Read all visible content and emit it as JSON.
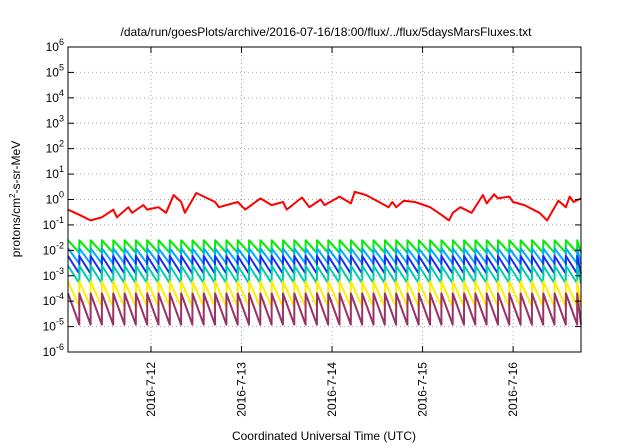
{
  "chart_data": {
    "type": "line",
    "title": "/data/run/goesPlots/archive/2016-07-16/18:00/flux/../flux/5daysMarsFluxes.txt",
    "xlabel": "Coordinated Universal Time (UTC)",
    "ylabel_parts": {
      "base": "protons/cm",
      "sup": "2",
      "rest": "-s-sr-MeV"
    },
    "y_scale": "log",
    "ylim": [
      1e-06,
      1000000.0
    ],
    "y_ticks": [
      {
        "base": "10",
        "exp": "-6",
        "value": 1e-06
      },
      {
        "base": "10",
        "exp": "-5",
        "value": 1e-05
      },
      {
        "base": "10",
        "exp": "-4",
        "value": 0.0001
      },
      {
        "base": "10",
        "exp": "-3",
        "value": 0.001
      },
      {
        "base": "10",
        "exp": "-2",
        "value": 0.01
      },
      {
        "base": "10",
        "exp": "-1",
        "value": 0.1
      },
      {
        "base": "10",
        "exp": "0",
        "value": 1
      },
      {
        "base": "10",
        "exp": "1",
        "value": 10
      },
      {
        "base": "10",
        "exp": "2",
        "value": 100
      },
      {
        "base": "10",
        "exp": "3",
        "value": 1000
      },
      {
        "base": "10",
        "exp": "4",
        "value": 10000
      },
      {
        "base": "10",
        "exp": "5",
        "value": 100000
      },
      {
        "base": "10",
        "exp": "6",
        "value": 1000000
      }
    ],
    "x_range": [
      "2016-07-11T02:00",
      "2016-07-16T18:00"
    ],
    "x_ticks": [
      {
        "label": "2016-7-12",
        "date": "2016-07-12"
      },
      {
        "label": "2016-7-13",
        "date": "2016-07-13"
      },
      {
        "label": "2016-7-14",
        "date": "2016-07-14"
      },
      {
        "label": "2016-7-15",
        "date": "2016-07-15"
      },
      {
        "label": "2016-7-16",
        "date": "2016-07-16"
      }
    ],
    "grid": true,
    "series": [
      {
        "color": "#ff0000",
        "x": [
          "2016-07-11T02:00",
          "2016-07-11T05:00",
          "2016-07-11T08:00",
          "2016-07-11T11:00",
          "2016-07-11T14:00",
          "2016-07-11T15:00",
          "2016-07-11T18:00",
          "2016-07-11T19:00",
          "2016-07-11T22:00",
          "2016-07-11T23:00",
          "2016-07-12T02:00",
          "2016-07-12T04:00",
          "2016-07-12T06:00",
          "2016-07-12T08:00",
          "2016-07-12T09:00",
          "2016-07-12T12:00",
          "2016-07-12T17:00",
          "2016-07-12T18:00",
          "2016-07-12T23:00",
          "2016-07-13T01:00",
          "2016-07-13T05:00",
          "2016-07-13T08:00",
          "2016-07-13T11:00",
          "2016-07-13T12:00",
          "2016-07-13T16:00",
          "2016-07-13T18:00",
          "2016-07-13T21:00",
          "2016-07-13T22:00",
          "2016-07-14T02:00",
          "2016-07-14T05:00",
          "2016-07-14T06:00",
          "2016-07-14T09:00",
          "2016-07-14T15:00",
          "2016-07-14T16:00",
          "2016-07-14T17:00",
          "2016-07-14T19:00",
          "2016-07-14T22:00",
          "2016-07-15T02:00",
          "2016-07-15T05:00",
          "2016-07-15T07:00",
          "2016-07-15T08:00",
          "2016-07-15T10:00",
          "2016-07-15T13:00",
          "2016-07-15T16:00",
          "2016-07-15T17:00",
          "2016-07-15T19:00",
          "2016-07-15T20:00",
          "2016-07-15T23:00",
          "2016-07-16T00:00",
          "2016-07-16T03:00",
          "2016-07-16T07:00",
          "2016-07-16T09:00",
          "2016-07-16T12:00",
          "2016-07-16T14:00",
          "2016-07-16T15:00",
          "2016-07-16T16:00",
          "2016-07-16T18:00"
        ],
        "y": [
          0.4,
          0.25,
          0.15,
          0.2,
          0.4,
          0.2,
          0.5,
          0.3,
          0.6,
          0.4,
          0.5,
          0.3,
          1.5,
          0.8,
          0.3,
          1.8,
          0.8,
          0.5,
          0.8,
          0.4,
          1.1,
          0.6,
          0.8,
          0.4,
          1.2,
          0.5,
          1.0,
          0.6,
          1.3,
          0.7,
          2.0,
          1.5,
          0.5,
          0.8,
          0.5,
          0.9,
          0.8,
          0.5,
          0.25,
          0.15,
          0.3,
          0.5,
          0.3,
          1.5,
          0.7,
          1.6,
          1.1,
          1.3,
          0.8,
          0.6,
          0.3,
          0.15,
          0.9,
          0.5,
          1.3,
          0.8,
          1.1
        ]
      },
      {
        "color": "#00ee00",
        "period_hours": 3,
        "ymax": 0.025,
        "ymin": 0.008
      },
      {
        "color": "#00aaff",
        "period_hours": 3,
        "ymax": 0.012,
        "ymin": 0.003
      },
      {
        "color": "#1a2ef0",
        "period_hours": 3,
        "ymax": 0.006,
        "ymin": 0.0012
      },
      {
        "color": "#00ccaa",
        "period_hours": 3,
        "ymax": 0.0025,
        "ymin": 0.0005
      },
      {
        "color": "#ffee00",
        "period_hours": 3,
        "ymax": 0.0006,
        "ymin": 6e-05
      },
      {
        "color": "#993366",
        "period_hours": 3,
        "ymax": 0.0002,
        "ymin": 1.2e-05
      }
    ]
  }
}
